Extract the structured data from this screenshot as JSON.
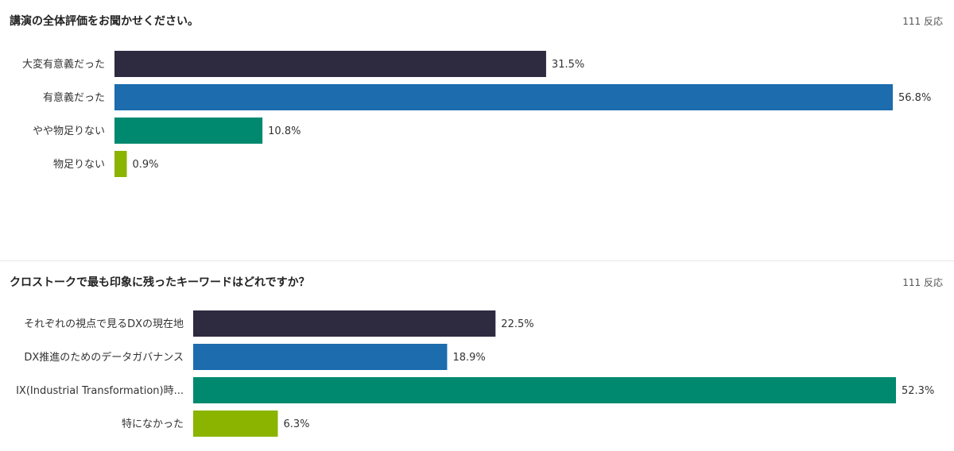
{
  "questions": [
    {
      "title": "講演の全体評価をお聞かせください。",
      "count_label": "111 反応",
      "chart_data": {
        "type": "bar",
        "orientation": "horizontal",
        "categories": [
          "大変有意義だった",
          "有意義だった",
          "やや物足りない",
          "物足りない"
        ],
        "values": [
          31.5,
          56.8,
          10.8,
          0.9
        ],
        "value_labels": [
          "31.5%",
          "56.8%",
          "10.8%",
          "0.9%"
        ],
        "colors": [
          "#2e2a40",
          "#1c6cae",
          "#00896e",
          "#8ab400"
        ],
        "xlim": [
          0,
          56.8
        ],
        "grid": false
      }
    },
    {
      "title": "クロストークで最も印象に残ったキーワードはどれですか？",
      "count_label": "111 反応",
      "chart_data": {
        "type": "bar",
        "orientation": "horizontal",
        "categories": [
          "それぞれの視点で見るDXの現在地",
          "DX推進のためのデータガバナンス",
          "IX(Industrial Transformation)時...",
          "特になかった"
        ],
        "values": [
          22.5,
          18.9,
          52.3,
          6.3
        ],
        "value_labels": [
          "22.5%",
          "18.9%",
          "52.3%",
          "6.3%"
        ],
        "colors": [
          "#2e2a40",
          "#1c6cae",
          "#00896e",
          "#8ab400"
        ],
        "xlim": [
          0,
          52.3
        ],
        "grid": false
      }
    }
  ]
}
